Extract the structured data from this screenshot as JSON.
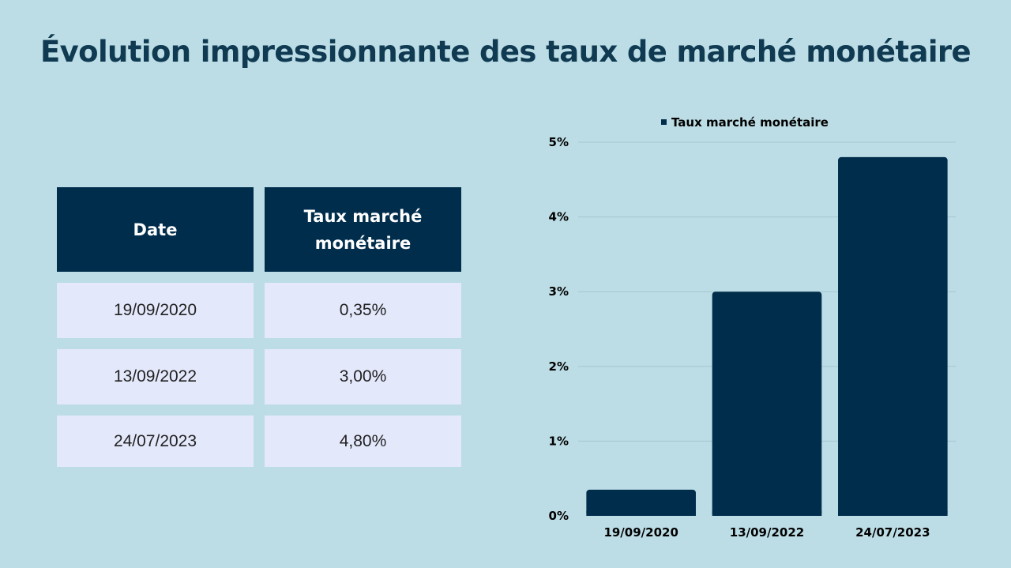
{
  "title": "Évolution impressionnante des taux de marché monétaire",
  "table": {
    "headers": [
      "Date",
      "Taux marché monétaire"
    ],
    "rows": [
      [
        "19/09/2020",
        "0,35%"
      ],
      [
        "13/09/2022",
        "3,00%"
      ],
      [
        "24/07/2023",
        "4,80%"
      ]
    ]
  },
  "colors": {
    "background": "#bcdde5",
    "bar": "#002d4c",
    "header": "#002d4c",
    "row": "#e4e8fb",
    "title": "#0f3a52",
    "grid": "#a4c6d1"
  },
  "chart_data": {
    "type": "bar",
    "categories": [
      "19/09/2020",
      "13/09/2022",
      "24/07/2023"
    ],
    "series": [
      {
        "name": "Taux marché monétaire",
        "values": [
          0.35,
          3.0,
          4.8
        ]
      }
    ],
    "ylim": [
      0,
      5
    ],
    "yticks": [
      "0%",
      "1%",
      "2%",
      "3%",
      "4%",
      "5%"
    ],
    "grid": true,
    "legend": "top-center"
  }
}
